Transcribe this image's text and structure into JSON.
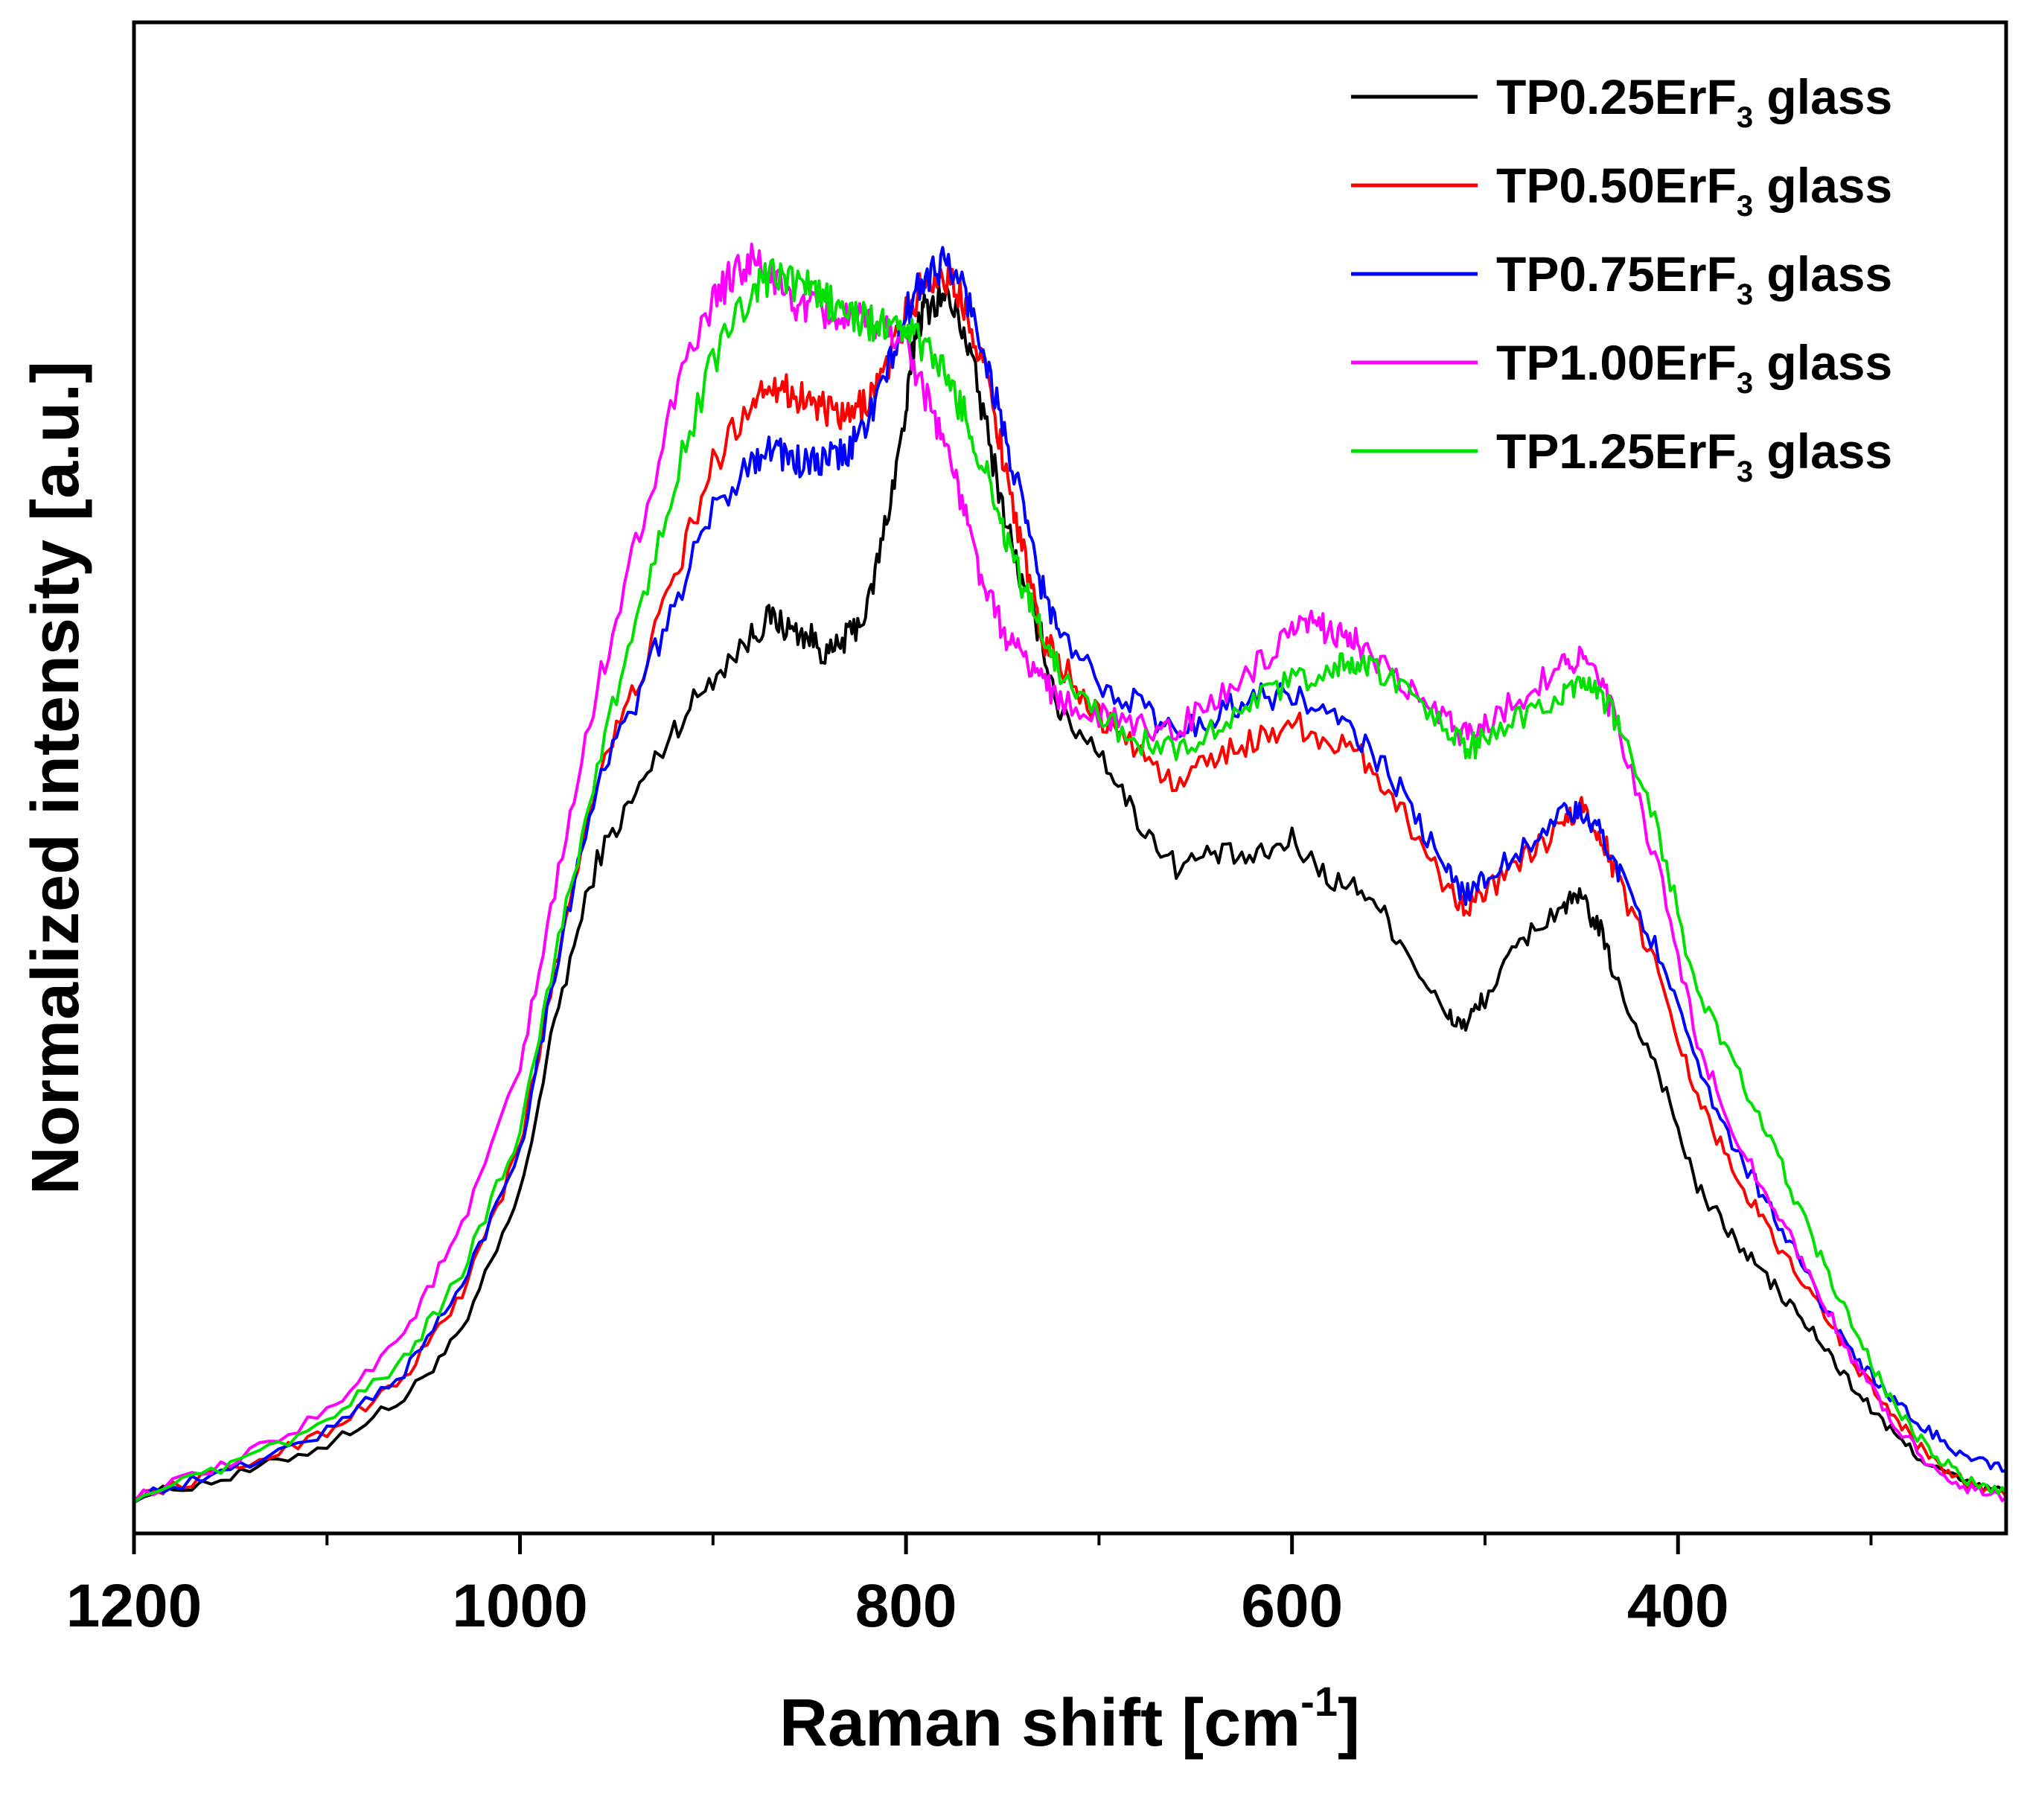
{
  "chart_data": {
    "type": "line",
    "title": "",
    "xlabel": "Raman shift [cm",
    "xlabel_sup": "-1",
    "xlabel_end": "]",
    "ylabel": "Normalized intensity [a.u.]",
    "xlim": [
      1200,
      230
    ],
    "ylim": [
      0,
      1.0
    ],
    "x_reversed": true,
    "x_major_ticks": [
      1200,
      1000,
      800,
      600,
      400
    ],
    "x_major_tick_labels": [
      "1200",
      "1000",
      "800",
      "600",
      "400"
    ],
    "x_minor_ticks": [
      1100,
      900,
      700,
      500,
      300
    ],
    "y_ticks_shown": false,
    "grid": false,
    "legend_position": "top-right",
    "series": [
      {
        "name": "TP0.25ErF3 glass",
        "label_main": "TP0.25ErF",
        "label_sub": "3",
        "label_end": " glass",
        "color": "#000000",
        "points": [
          [
            1200,
            0.005
          ],
          [
            1150,
            0.02
          ],
          [
            1100,
            0.045
          ],
          [
            1060,
            0.08
          ],
          [
            1030,
            0.13
          ],
          [
            1000,
            0.235
          ],
          [
            980,
            0.38
          ],
          [
            960,
            0.49
          ],
          [
            940,
            0.54
          ],
          [
            920,
            0.59
          ],
          [
            900,
            0.63
          ],
          [
            880,
            0.66
          ],
          [
            870,
            0.675
          ],
          [
            860,
            0.665
          ],
          [
            850,
            0.66
          ],
          [
            840,
            0.645
          ],
          [
            830,
            0.66
          ],
          [
            820,
            0.68
          ],
          [
            810,
            0.75
          ],
          [
            800,
            0.83
          ],
          [
            795,
            0.895
          ],
          [
            790,
            0.91
          ],
          [
            780,
            0.92
          ],
          [
            770,
            0.895
          ],
          [
            760,
            0.83
          ],
          [
            750,
            0.76
          ],
          [
            740,
            0.7
          ],
          [
            730,
            0.66
          ],
          [
            720,
            0.6
          ],
          [
            700,
            0.575
          ],
          [
            680,
            0.52
          ],
          [
            660,
            0.485
          ],
          [
            640,
            0.495
          ],
          [
            620,
            0.49
          ],
          [
            600,
            0.505
          ],
          [
            580,
            0.475
          ],
          [
            560,
            0.465
          ],
          [
            540,
            0.42
          ],
          [
            520,
            0.37
          ],
          [
            510,
            0.365
          ],
          [
            500,
            0.385
          ],
          [
            480,
            0.43
          ],
          [
            460,
            0.455
          ],
          [
            450,
            0.46
          ],
          [
            440,
            0.435
          ],
          [
            430,
            0.39
          ],
          [
            410,
            0.33
          ],
          [
            390,
            0.24
          ],
          [
            370,
            0.2
          ],
          [
            350,
            0.165
          ],
          [
            330,
            0.13
          ],
          [
            310,
            0.09
          ],
          [
            290,
            0.055
          ],
          [
            270,
            0.03
          ],
          [
            250,
            0.015
          ],
          [
            230,
            0.008
          ]
        ]
      },
      {
        "name": "TP0.50ErF3 glass",
        "label_main": "TP0.50ErF",
        "label_sub": "3",
        "label_end": " glass",
        "color": "#ff0000",
        "points": [
          [
            1200,
            0.005
          ],
          [
            1150,
            0.025
          ],
          [
            1100,
            0.055
          ],
          [
            1060,
            0.095
          ],
          [
            1030,
            0.16
          ],
          [
            1000,
            0.27
          ],
          [
            980,
            0.42
          ],
          [
            960,
            0.555
          ],
          [
            940,
            0.62
          ],
          [
            920,
            0.705
          ],
          [
            900,
            0.79
          ],
          [
            880,
            0.84
          ],
          [
            870,
            0.855
          ],
          [
            860,
            0.845
          ],
          [
            850,
            0.84
          ],
          [
            840,
            0.83
          ],
          [
            830,
            0.825
          ],
          [
            820,
            0.84
          ],
          [
            810,
            0.865
          ],
          [
            800,
            0.905
          ],
          [
            790,
            0.93
          ],
          [
            780,
            0.935
          ],
          [
            770,
            0.915
          ],
          [
            760,
            0.87
          ],
          [
            750,
            0.8
          ],
          [
            740,
            0.73
          ],
          [
            730,
            0.66
          ],
          [
            720,
            0.64
          ],
          [
            700,
            0.6
          ],
          [
            680,
            0.575
          ],
          [
            660,
            0.545
          ],
          [
            640,
            0.57
          ],
          [
            620,
            0.58
          ],
          [
            600,
            0.595
          ],
          [
            580,
            0.58
          ],
          [
            560,
            0.565
          ],
          [
            540,
            0.52
          ],
          [
            520,
            0.47
          ],
          [
            510,
            0.455
          ],
          [
            500,
            0.465
          ],
          [
            480,
            0.49
          ],
          [
            460,
            0.515
          ],
          [
            450,
            0.53
          ],
          [
            440,
            0.51
          ],
          [
            430,
            0.47
          ],
          [
            410,
            0.405
          ],
          [
            390,
            0.31
          ],
          [
            370,
            0.25
          ],
          [
            350,
            0.2
          ],
          [
            330,
            0.16
          ],
          [
            310,
            0.11
          ],
          [
            290,
            0.07
          ],
          [
            270,
            0.035
          ],
          [
            250,
            0.015
          ],
          [
            230,
            0.005
          ]
        ]
      },
      {
        "name": "TP0.75ErF3 glass",
        "label_main": "TP0.75ErF",
        "label_sub": "3",
        "label_end": " glass",
        "color": "#0000ff",
        "points": [
          [
            1200,
            0.005
          ],
          [
            1150,
            0.025
          ],
          [
            1100,
            0.055
          ],
          [
            1060,
            0.1
          ],
          [
            1030,
            0.165
          ],
          [
            1000,
            0.27
          ],
          [
            980,
            0.42
          ],
          [
            960,
            0.55
          ],
          [
            940,
            0.61
          ],
          [
            920,
            0.685
          ],
          [
            900,
            0.755
          ],
          [
            880,
            0.795
          ],
          [
            870,
            0.805
          ],
          [
            860,
            0.795
          ],
          [
            850,
            0.79
          ],
          [
            840,
            0.795
          ],
          [
            830,
            0.8
          ],
          [
            820,
            0.825
          ],
          [
            810,
            0.86
          ],
          [
            800,
            0.905
          ],
          [
            790,
            0.935
          ],
          [
            780,
            0.945
          ],
          [
            770,
            0.925
          ],
          [
            760,
            0.88
          ],
          [
            750,
            0.82
          ],
          [
            740,
            0.76
          ],
          [
            730,
            0.7
          ],
          [
            720,
            0.66
          ],
          [
            700,
            0.625
          ],
          [
            680,
            0.61
          ],
          [
            660,
            0.585
          ],
          [
            640,
            0.6
          ],
          [
            620,
            0.615
          ],
          [
            600,
            0.615
          ],
          [
            580,
            0.6
          ],
          [
            560,
            0.575
          ],
          [
            540,
            0.535
          ],
          [
            520,
            0.48
          ],
          [
            510,
            0.465
          ],
          [
            500,
            0.475
          ],
          [
            480,
            0.5
          ],
          [
            460,
            0.525
          ],
          [
            450,
            0.525
          ],
          [
            440,
            0.51
          ],
          [
            430,
            0.48
          ],
          [
            410,
            0.42
          ],
          [
            390,
            0.33
          ],
          [
            370,
            0.27
          ],
          [
            350,
            0.22
          ],
          [
            330,
            0.165
          ],
          [
            310,
            0.115
          ],
          [
            290,
            0.08
          ],
          [
            270,
            0.055
          ],
          [
            250,
            0.035
          ],
          [
            230,
            0.025
          ]
        ]
      },
      {
        "name": "TP1.00ErF3 glass",
        "label_main": "TP1.00ErF",
        "label_sub": "3",
        "label_end": " glass",
        "color": "#ff00ff",
        "points": [
          [
            1200,
            0.005
          ],
          [
            1150,
            0.03
          ],
          [
            1100,
            0.07
          ],
          [
            1060,
            0.13
          ],
          [
            1030,
            0.21
          ],
          [
            1000,
            0.33
          ],
          [
            980,
            0.48
          ],
          [
            960,
            0.62
          ],
          [
            940,
            0.73
          ],
          [
            920,
            0.84
          ],
          [
            900,
            0.915
          ],
          [
            890,
            0.935
          ],
          [
            880,
            0.945
          ],
          [
            870,
            0.935
          ],
          [
            860,
            0.915
          ],
          [
            850,
            0.91
          ],
          [
            840,
            0.905
          ],
          [
            830,
            0.9
          ],
          [
            820,
            0.9
          ],
          [
            810,
            0.895
          ],
          [
            800,
            0.885
          ],
          [
            790,
            0.845
          ],
          [
            780,
            0.81
          ],
          [
            770,
            0.755
          ],
          [
            760,
            0.7
          ],
          [
            750,
            0.665
          ],
          [
            740,
            0.645
          ],
          [
            730,
            0.63
          ],
          [
            720,
            0.61
          ],
          [
            700,
            0.6
          ],
          [
            680,
            0.59
          ],
          [
            660,
            0.59
          ],
          [
            640,
            0.61
          ],
          [
            620,
            0.635
          ],
          [
            600,
            0.66
          ],
          [
            590,
            0.67
          ],
          [
            580,
            0.665
          ],
          [
            570,
            0.66
          ],
          [
            560,
            0.645
          ],
          [
            540,
            0.62
          ],
          [
            520,
            0.595
          ],
          [
            510,
            0.585
          ],
          [
            500,
            0.595
          ],
          [
            480,
            0.615
          ],
          [
            460,
            0.64
          ],
          [
            450,
            0.645
          ],
          [
            440,
            0.625
          ],
          [
            430,
            0.585
          ],
          [
            410,
            0.48
          ],
          [
            390,
            0.35
          ],
          [
            370,
            0.28
          ],
          [
            350,
            0.225
          ],
          [
            330,
            0.17
          ],
          [
            310,
            0.11
          ],
          [
            290,
            0.065
          ],
          [
            270,
            0.03
          ],
          [
            250,
            0.012
          ],
          [
            230,
            0.005
          ]
        ]
      },
      {
        "name": "TP1.25ErF3 glass",
        "label_main": "TP1.25ErF",
        "label_sub": "3",
        "label_end": " glass",
        "color": "#00e000",
        "points": [
          [
            1200,
            0.005
          ],
          [
            1150,
            0.028
          ],
          [
            1100,
            0.062
          ],
          [
            1060,
            0.11
          ],
          [
            1030,
            0.175
          ],
          [
            1000,
            0.285
          ],
          [
            980,
            0.43
          ],
          [
            960,
            0.56
          ],
          [
            940,
            0.67
          ],
          [
            920,
            0.78
          ],
          [
            900,
            0.87
          ],
          [
            880,
            0.92
          ],
          [
            870,
            0.935
          ],
          [
            860,
            0.93
          ],
          [
            850,
            0.925
          ],
          [
            840,
            0.915
          ],
          [
            830,
            0.905
          ],
          [
            820,
            0.9
          ],
          [
            810,
            0.895
          ],
          [
            800,
            0.895
          ],
          [
            790,
            0.88
          ],
          [
            780,
            0.86
          ],
          [
            770,
            0.83
          ],
          [
            760,
            0.79
          ],
          [
            750,
            0.745
          ],
          [
            740,
            0.7
          ],
          [
            730,
            0.665
          ],
          [
            720,
            0.635
          ],
          [
            700,
            0.6
          ],
          [
            680,
            0.58
          ],
          [
            660,
            0.575
          ],
          [
            640,
            0.59
          ],
          [
            620,
            0.61
          ],
          [
            600,
            0.625
          ],
          [
            580,
            0.635
          ],
          [
            570,
            0.64
          ],
          [
            560,
            0.635
          ],
          [
            540,
            0.62
          ],
          [
            520,
            0.59
          ],
          [
            510,
            0.575
          ],
          [
            500,
            0.58
          ],
          [
            480,
            0.6
          ],
          [
            460,
            0.615
          ],
          [
            450,
            0.62
          ],
          [
            440,
            0.615
          ],
          [
            430,
            0.59
          ],
          [
            410,
            0.51
          ],
          [
            390,
            0.39
          ],
          [
            370,
            0.33
          ],
          [
            350,
            0.27
          ],
          [
            330,
            0.2
          ],
          [
            310,
            0.135
          ],
          [
            290,
            0.08
          ],
          [
            270,
            0.04
          ],
          [
            250,
            0.018
          ],
          [
            230,
            0.008
          ]
        ]
      }
    ]
  }
}
